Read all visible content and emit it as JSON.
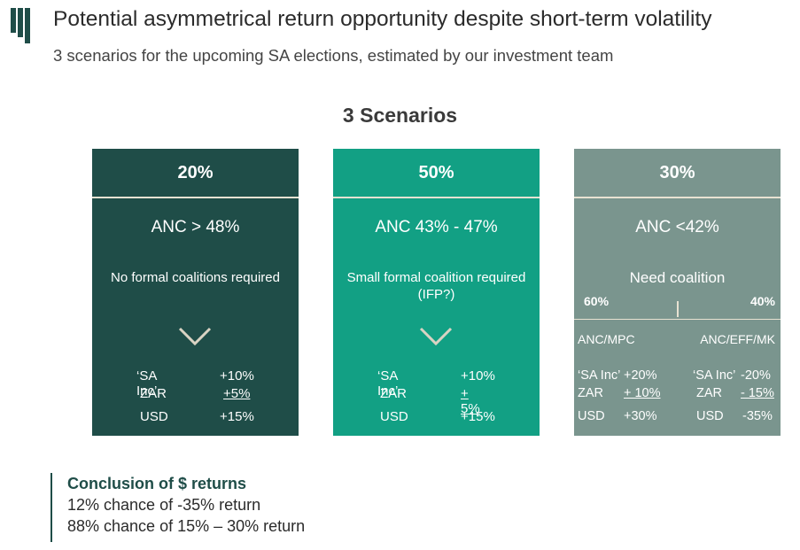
{
  "header": {
    "title": "Potential asymmetrical return opportunity despite short-term volatility",
    "subtitle": "3 scenarios for the upcoming SA elections, estimated by our investment team"
  },
  "section_heading": "3 Scenarios",
  "colors": {
    "card1": "#1f4d48",
    "card2": "#12a084",
    "card3": "#7a958e",
    "divider": "#e8e2d2",
    "brand": "#1f4d48"
  },
  "scenarios": [
    {
      "probability": "20%",
      "outcome": "ANC > 48%",
      "description": "No formal coalitions required",
      "icon": "chevron-down-icon",
      "returns": [
        {
          "label": "‘SA Inc’",
          "value": "+10%"
        },
        {
          "label": "ZAR",
          "value": "+5%"
        },
        {
          "label": "USD",
          "value": "+15%"
        }
      ]
    },
    {
      "probability": "50%",
      "outcome": "ANC 43% - 47%",
      "description": "Small formal coalition required (IFP?)",
      "icon": "chevron-down-icon",
      "returns": [
        {
          "label": "‘SA Inc’",
          "value": "+10%"
        },
        {
          "label": "ZAR",
          "value": "+ 5%"
        },
        {
          "label": "USD",
          "value": "+15%"
        }
      ]
    },
    {
      "probability": "30%",
      "outcome": "ANC <42%",
      "description": "Need coalition",
      "split": [
        {
          "weight": "60%",
          "coalition": "ANC/MPC",
          "returns": [
            {
              "label": "‘SA Inc’",
              "value": "+20%"
            },
            {
              "label": "ZAR",
              "value": "+ 10%"
            },
            {
              "label": "USD",
              "value": "+30%"
            }
          ]
        },
        {
          "weight": "40%",
          "coalition": "ANC/EFF/MK",
          "returns": [
            {
              "label": "‘SA Inc’",
              "value": "-20%"
            },
            {
              "label": "ZAR",
              "value": "- 15%"
            },
            {
              "label": "USD",
              "value": "-35%"
            }
          ]
        }
      ]
    }
  ],
  "conclusion": {
    "title": "Conclusion of $ returns",
    "lines": [
      "12% chance of -35% return",
      "88% chance of 15% – 30% return"
    ]
  }
}
